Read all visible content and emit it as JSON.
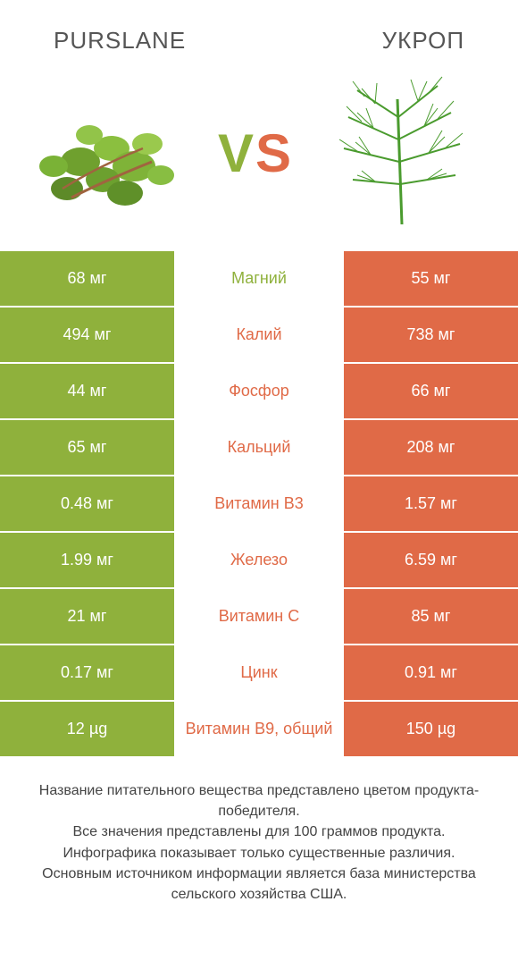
{
  "header": {
    "left_title": "PURSLANE",
    "right_title": "УКРОП"
  },
  "vs": {
    "v": "V",
    "s": "S"
  },
  "colors": {
    "green": "#8fb13c",
    "orange": "#e06a47",
    "mid_green_text": "#8fb13c",
    "mid_orange_text": "#e06a47"
  },
  "rows": [
    {
      "left": "68 мг",
      "mid": "Магний",
      "right": "55 мг",
      "winner": "left"
    },
    {
      "left": "494 мг",
      "mid": "Калий",
      "right": "738 мг",
      "winner": "right"
    },
    {
      "left": "44 мг",
      "mid": "Фосфор",
      "right": "66 мг",
      "winner": "right"
    },
    {
      "left": "65 мг",
      "mid": "Кальций",
      "right": "208 мг",
      "winner": "right"
    },
    {
      "left": "0.48 мг",
      "mid": "Витамин B3",
      "right": "1.57 мг",
      "winner": "right"
    },
    {
      "left": "1.99 мг",
      "mid": "Железо",
      "right": "6.59 мг",
      "winner": "right"
    },
    {
      "left": "21 мг",
      "mid": "Витамин C",
      "right": "85 мг",
      "winner": "right"
    },
    {
      "left": "0.17 мг",
      "mid": "Цинк",
      "right": "0.91 мг",
      "winner": "right"
    },
    {
      "left": "12 µg",
      "mid": "Витамин B9, общий",
      "right": "150 µg",
      "winner": "right"
    }
  ],
  "footer": {
    "line1": "Название питательного вещества представлено цветом продукта-победителя.",
    "line2": "Все значения представлены для 100 граммов продукта.",
    "line3": "Инфографика показывает только существенные различия.",
    "line4": "Основным источником информации является база министерства сельского хозяйства США."
  }
}
